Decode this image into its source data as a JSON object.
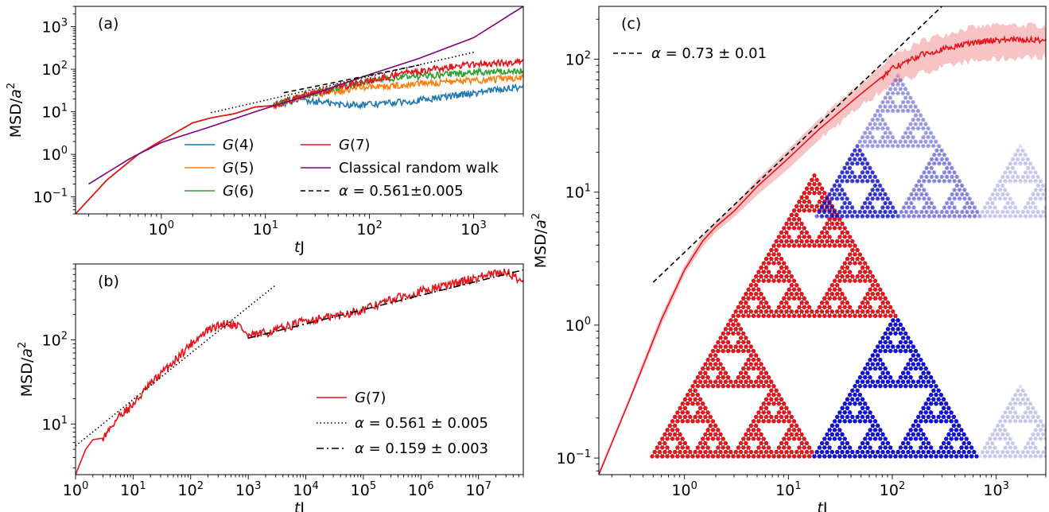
{
  "figure": {
    "colors": {
      "G4": "#1f77b4",
      "G5": "#ff7f0e",
      "G6": "#2ca02c",
      "G7": "#e8141b",
      "classical": "#800080",
      "fit": "#000000",
      "band": "#f7b8bb",
      "node_red": "#e8141b",
      "node_blue": "#1010d8"
    }
  },
  "chart_data": [
    {
      "panel": "(a)",
      "type": "line",
      "scale": "log-log",
      "xlabel_main": "t",
      "xlabel_sub": "J",
      "ylabel_main": "MSD/",
      "ylabel_var": "a",
      "ylabel_exp": "2",
      "xlim": [
        0.15,
        3000
      ],
      "ylim": [
        0.04,
        3000
      ],
      "x_ticks": [
        {
          "base": "10",
          "exp": "0",
          "v": 1
        },
        {
          "base": "10",
          "exp": "1",
          "v": 10
        },
        {
          "base": "10",
          "exp": "2",
          "v": 100
        },
        {
          "base": "10",
          "exp": "3",
          "v": 1000
        }
      ],
      "y_ticks": [
        {
          "base": "10",
          "exp": "−1",
          "v": 0.1
        },
        {
          "base": "10",
          "exp": "0",
          "v": 1
        },
        {
          "base": "10",
          "exp": "1",
          "v": 10
        },
        {
          "base": "10",
          "exp": "2",
          "v": 100
        },
        {
          "base": "10",
          "exp": "3",
          "v": 1000
        }
      ],
      "legend_position": "lower-center",
      "series": [
        {
          "key": "G4",
          "name": "G(4)",
          "style": "solid",
          "x": [
            0.15,
            0.3,
            0.6,
            1,
            2,
            3,
            5,
            8,
            12,
            20,
            30,
            50,
            100,
            200,
            500,
            1000,
            3000
          ],
          "y": [
            0.04,
            0.25,
            1.0,
            2.1,
            5.5,
            7.2,
            9.0,
            13,
            14,
            20,
            18,
            15,
            15,
            17,
            22,
            28,
            40
          ]
        },
        {
          "key": "G5",
          "name": "G(5)",
          "style": "solid",
          "x": [
            0.15,
            0.3,
            0.6,
            1,
            2,
            3,
            5,
            8,
            12,
            20,
            30,
            50,
            100,
            200,
            500,
            1000,
            3000
          ],
          "y": [
            0.04,
            0.25,
            1.0,
            2.1,
            5.5,
            7.2,
            9.0,
            13,
            14,
            22,
            27,
            30,
            40,
            42,
            50,
            55,
            65
          ]
        },
        {
          "key": "G6",
          "name": "G(6)",
          "style": "solid",
          "x": [
            0.15,
            0.3,
            0.6,
            1,
            2,
            3,
            5,
            8,
            12,
            20,
            30,
            50,
            100,
            200,
            500,
            1000,
            3000
          ],
          "y": [
            0.04,
            0.25,
            1.0,
            2.1,
            5.5,
            7.2,
            9.0,
            13,
            14,
            22,
            28,
            38,
            55,
            65,
            75,
            85,
            95
          ]
        },
        {
          "key": "G7",
          "name": "G(7)",
          "style": "solid",
          "x": [
            0.15,
            0.3,
            0.6,
            1,
            2,
            3,
            5,
            8,
            12,
            20,
            30,
            50,
            100,
            200,
            500,
            1000,
            3000
          ],
          "y": [
            0.04,
            0.25,
            1.0,
            2.1,
            5.5,
            7.2,
            9.0,
            13,
            14,
            22,
            28,
            38,
            55,
            80,
            110,
            130,
            150
          ]
        },
        {
          "key": "classical",
          "name": "Classical random walk",
          "style": "solid",
          "x": [
            0.2,
            0.5,
            1,
            3,
            10,
            30,
            100,
            300,
            1000,
            3000
          ],
          "y": [
            0.2,
            0.8,
            1.9,
            4.5,
            12,
            27,
            75,
            180,
            550,
            3000
          ]
        },
        {
          "key": "fit",
          "name": "α = 0.561±0.005",
          "style": "dashed",
          "x": [
            15,
            300
          ],
          "y": [
            28,
            125
          ]
        },
        {
          "key": "fit",
          "name": "",
          "style": "dotted",
          "x": [
            3,
            1000
          ],
          "y": [
            9.5,
            250
          ]
        }
      ]
    },
    {
      "panel": "(b)",
      "type": "line",
      "scale": "log-log",
      "xlabel_main": "t",
      "xlabel_sub": "J",
      "ylabel_main": "MSD/",
      "ylabel_var": "a",
      "ylabel_exp": "2",
      "xlim": [
        1,
        60000000
      ],
      "ylim": [
        2.5,
        800
      ],
      "x_ticks": [
        {
          "base": "10",
          "exp": "0",
          "v": 1
        },
        {
          "base": "10",
          "exp": "1",
          "v": 10
        },
        {
          "base": "10",
          "exp": "2",
          "v": 100
        },
        {
          "base": "10",
          "exp": "3",
          "v": 1000
        },
        {
          "base": "10",
          "exp": "4",
          "v": 10000
        },
        {
          "base": "10",
          "exp": "5",
          "v": 100000
        },
        {
          "base": "10",
          "exp": "6",
          "v": 1000000
        },
        {
          "base": "10",
          "exp": "7",
          "v": 10000000
        }
      ],
      "y_ticks": [
        {
          "base": "10",
          "exp": "1",
          "v": 10
        },
        {
          "base": "10",
          "exp": "2",
          "v": 100
        }
      ],
      "legend_position": "lower-right",
      "series": [
        {
          "key": "G7",
          "name": "G(7)",
          "style": "solid",
          "x": [
            1,
            1.5,
            2,
            3,
            4,
            6,
            10,
            20,
            50,
            100,
            200,
            400,
            700,
            1000,
            3000,
            10000,
            30000,
            100000,
            300000,
            1000000,
            3000000,
            10000000,
            30000000,
            60000000
          ],
          "y": [
            2.5,
            5,
            6.5,
            6.8,
            9,
            13,
            17,
            30,
            55,
            90,
            130,
            160,
            150,
            110,
            130,
            170,
            190,
            230,
            300,
            380,
            450,
            560,
            650,
            500
          ]
        },
        {
          "key": "fit",
          "name": "α = 0.561 ± 0.005",
          "style": "dotted",
          "x": [
            1,
            3000
          ],
          "y": [
            5.5,
            450
          ]
        },
        {
          "key": "fit",
          "name": "α = 0.159 ± 0.003",
          "style": "dashdot",
          "x": [
            1000,
            60000000
          ],
          "y": [
            105,
            680
          ]
        }
      ]
    },
    {
      "panel": "(c)",
      "type": "line",
      "scale": "log-log",
      "xlabel_main": "t",
      "xlabel_sub": "J",
      "ylabel_main": "MSD/",
      "ylabel_var": "a",
      "ylabel_exp": "2",
      "xlim": [
        0.15,
        3000
      ],
      "ylim": [
        0.075,
        250
      ],
      "x_ticks": [
        {
          "base": "10",
          "exp": "0",
          "v": 1
        },
        {
          "base": "10",
          "exp": "1",
          "v": 10
        },
        {
          "base": "10",
          "exp": "2",
          "v": 100
        },
        {
          "base": "10",
          "exp": "3",
          "v": 1000
        }
      ],
      "y_ticks": [
        {
          "base": "10",
          "exp": "−1",
          "v": 0.1
        },
        {
          "base": "10",
          "exp": "0",
          "v": 1
        },
        {
          "base": "10",
          "exp": "1",
          "v": 10
        },
        {
          "base": "10",
          "exp": "2",
          "v": 100
        }
      ],
      "legend_position": "upper-left",
      "series": [
        {
          "key": "G7",
          "name": "",
          "style": "solid",
          "x": [
            0.15,
            0.3,
            0.6,
            1,
            1.5,
            2,
            3,
            5,
            10,
            20,
            50,
            100,
            200,
            500,
            1000,
            3000
          ],
          "y": [
            0.075,
            0.28,
            1.1,
            2.6,
            4.3,
            5.5,
            7.2,
            11,
            18,
            30,
            55,
            85,
            110,
            130,
            140,
            140
          ],
          "band_lo": [
            0.075,
            0.27,
            1.0,
            2.4,
            3.9,
            5.0,
            6.5,
            9.5,
            15,
            25,
            45,
            65,
            80,
            95,
            100,
            105
          ],
          "band_hi": [
            0.08,
            0.3,
            1.2,
            2.8,
            4.7,
            6.0,
            8.0,
            12.5,
            21,
            36,
            65,
            105,
            140,
            170,
            180,
            180
          ]
        },
        {
          "key": "fit",
          "name": "α = 0.73 ± 0.01",
          "style": "dashed",
          "x": [
            0.5,
            300
          ],
          "y": [
            2.1,
            250
          ]
        }
      ]
    }
  ]
}
